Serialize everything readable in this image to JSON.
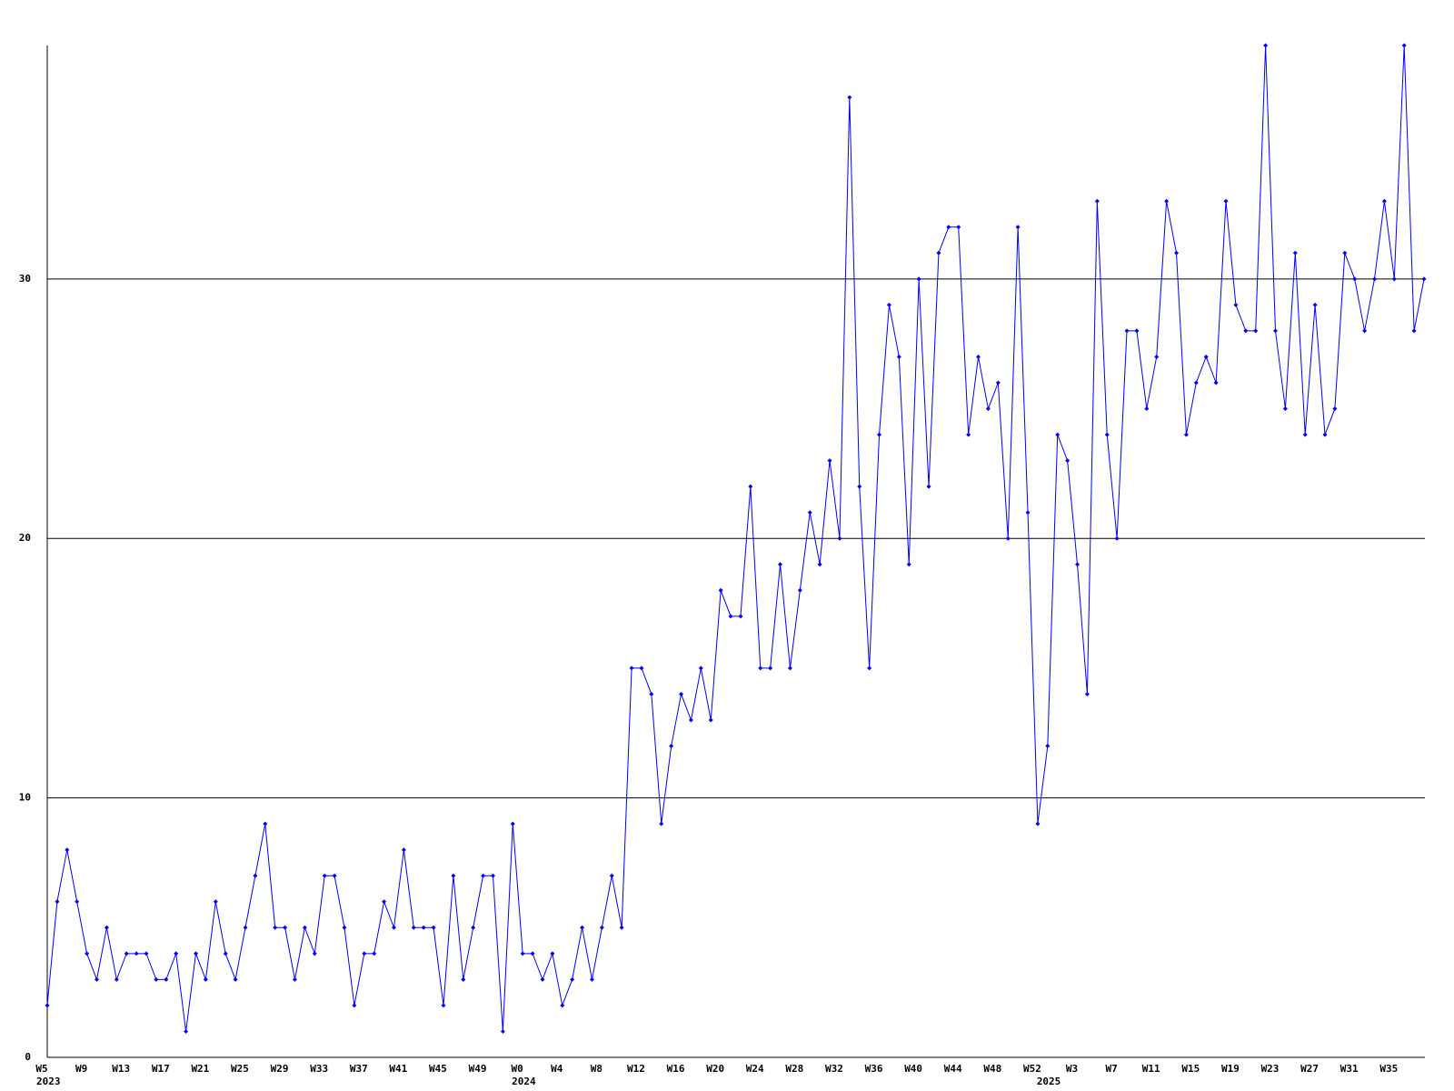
{
  "chart_data": {
    "type": "line",
    "color": "#0000ff",
    "grid": true,
    "ylim": [
      0,
      39
    ],
    "yticks": [
      0,
      10,
      20,
      30
    ],
    "categories": [
      "W5",
      null,
      null,
      null,
      "W9",
      null,
      null,
      null,
      "W13",
      null,
      null,
      null,
      "W17",
      null,
      null,
      null,
      "W21",
      null,
      null,
      null,
      "W25",
      null,
      null,
      null,
      "W29",
      null,
      null,
      null,
      "W33",
      null,
      null,
      null,
      "W37",
      null,
      null,
      null,
      "W41",
      null,
      null,
      null,
      "W45",
      null,
      null,
      null,
      "W49",
      null,
      null,
      null,
      "W0",
      null,
      null,
      null,
      "W4",
      null,
      null,
      null,
      "W8",
      null,
      null,
      null,
      "W12",
      null,
      null,
      null,
      "W16",
      null,
      null,
      null,
      "W20",
      null,
      null,
      null,
      "W24",
      null,
      null,
      null,
      "W28",
      null,
      null,
      null,
      "W32",
      null,
      null,
      null,
      "W36",
      null,
      null,
      null,
      "W40",
      null,
      null,
      null,
      "W44",
      null,
      null,
      null,
      "W48",
      null,
      null,
      null,
      "W52",
      null,
      null,
      null,
      "W3",
      null,
      null,
      null,
      "W7",
      null,
      null,
      null,
      "W11",
      null,
      null,
      null,
      "W15",
      null,
      null,
      null,
      "W19",
      null,
      null,
      null,
      "W23",
      null,
      null,
      null,
      "W27",
      null,
      null,
      null,
      "W31",
      null,
      null,
      null,
      "W35",
      null,
      null,
      null
    ],
    "years": [
      "2023",
      null,
      null,
      null,
      null,
      null,
      null,
      null,
      null,
      null,
      null,
      null,
      null,
      null,
      null,
      null,
      null,
      null,
      null,
      null,
      null,
      null,
      null,
      null,
      null,
      null,
      null,
      null,
      null,
      null,
      null,
      null,
      null,
      null,
      null,
      null,
      null,
      null,
      null,
      null,
      null,
      null,
      null,
      null,
      null,
      null,
      null,
      null,
      "2024",
      null,
      null,
      null,
      null,
      null,
      null,
      null,
      null,
      null,
      null,
      null,
      null,
      null,
      null,
      null,
      null,
      null,
      null,
      null,
      null,
      null,
      null,
      null,
      null,
      null,
      null,
      null,
      null,
      null,
      null,
      null,
      null,
      null,
      null,
      null,
      null,
      null,
      null,
      null,
      null,
      null,
      null,
      null,
      null,
      null,
      null,
      null,
      null,
      null,
      null,
      null,
      null,
      "2025",
      null,
      null,
      null,
      null,
      null,
      null,
      null,
      null,
      null,
      null,
      null,
      null,
      null,
      null,
      null,
      null,
      null,
      null,
      null,
      null,
      null,
      null,
      null,
      null,
      null,
      null,
      null,
      null,
      null,
      null,
      null,
      null,
      null,
      null,
      null,
      null,
      null,
      null
    ],
    "values": [
      2,
      6,
      8,
      6,
      4,
      3,
      5,
      3,
      4,
      4,
      4,
      3,
      3,
      4,
      1,
      4,
      3,
      6,
      4,
      3,
      5,
      7,
      9,
      5,
      5,
      3,
      5,
      4,
      7,
      7,
      5,
      2,
      4,
      4,
      6,
      5,
      8,
      5,
      5,
      5,
      2,
      7,
      3,
      5,
      7,
      7,
      1,
      9,
      4,
      4,
      3,
      4,
      2,
      3,
      5,
      3,
      5,
      7,
      5,
      15,
      15,
      14,
      9,
      12,
      14,
      13,
      15,
      13,
      18,
      17,
      17,
      22,
      15,
      15,
      19,
      15,
      18,
      21,
      19,
      23,
      20,
      37,
      22,
      15,
      24,
      29,
      27,
      19,
      30,
      22,
      31,
      32,
      32,
      24,
      27,
      25,
      26,
      20,
      32,
      21,
      9,
      12,
      24,
      23,
      19,
      14,
      33,
      24,
      20,
      28,
      28,
      25,
      27,
      33,
      31,
      24,
      26,
      27,
      26,
      33,
      29,
      28,
      28,
      39,
      28,
      25,
      31,
      24,
      29,
      24,
      25,
      31,
      30,
      28,
      30,
      33,
      30,
      39,
      28,
      30
    ]
  }
}
